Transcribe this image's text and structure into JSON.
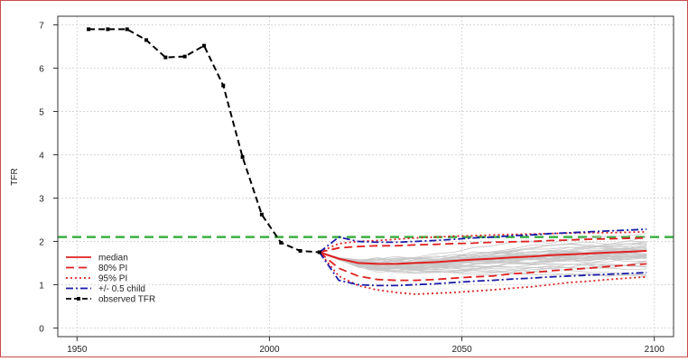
{
  "chart_data": {
    "type": "line",
    "title": "",
    "xlabel": "",
    "ylabel": "TFR",
    "xlim": [
      1945,
      2105
    ],
    "ylim": [
      -0.2,
      7.2
    ],
    "x_ticks": [
      "1950",
      "2000",
      "2050",
      "2100"
    ],
    "x_tick_values": [
      1950,
      2000,
      2050,
      2100
    ],
    "y_ticks": [
      "0",
      "1",
      "2",
      "3",
      "4",
      "5",
      "6",
      "7"
    ],
    "y_tick_values": [
      0,
      1,
      2,
      3,
      4,
      5,
      6,
      7
    ],
    "grid": true,
    "legend_position": "bottom-left",
    "reference_line": {
      "y": 2.1,
      "color": "#3cb043"
    },
    "observed": {
      "name": "observed TFR",
      "color": "#000000",
      "x": [
        1953,
        1958,
        1963,
        1968,
        1973,
        1978,
        1983,
        1988,
        1993,
        1998,
        2003,
        2008,
        2013
      ],
      "y": [
        6.9,
        6.9,
        6.9,
        6.65,
        6.25,
        6.27,
        6.52,
        5.6,
        3.95,
        2.62,
        1.97,
        1.78,
        1.75
      ]
    },
    "projection_x": [
      2013,
      2018,
      2023,
      2028,
      2033,
      2038,
      2043,
      2048,
      2053,
      2058,
      2063,
      2068,
      2073,
      2078,
      2083,
      2088,
      2093,
      2098
    ],
    "series": [
      {
        "name": "median",
        "color": "#e02020",
        "dash": "solid",
        "values": [
          1.75,
          1.6,
          1.5,
          1.48,
          1.48,
          1.5,
          1.52,
          1.55,
          1.58,
          1.6,
          1.63,
          1.65,
          1.68,
          1.7,
          1.72,
          1.74,
          1.76,
          1.78
        ]
      },
      {
        "name": "80% PI",
        "color": "#e02020",
        "dash": "dashed",
        "values": [
          1.75,
          1.85,
          1.88,
          1.9,
          1.9,
          1.92,
          1.93,
          1.95,
          1.96,
          1.98,
          1.99,
          2.0,
          2.02,
          2.03,
          2.05,
          2.06,
          2.07,
          2.08
        ]
      },
      {
        "name": "80% PI lower",
        "color": "#e02020",
        "dash": "dashed",
        "values": [
          1.75,
          1.38,
          1.2,
          1.12,
          1.1,
          1.1,
          1.12,
          1.15,
          1.18,
          1.2,
          1.25,
          1.28,
          1.32,
          1.35,
          1.38,
          1.42,
          1.45,
          1.48
        ]
      },
      {
        "name": "95% PI",
        "color": "#e02020",
        "dash": "dotted",
        "values": [
          1.75,
          1.95,
          2.0,
          2.02,
          2.05,
          2.08,
          2.1,
          2.12,
          2.13,
          2.15,
          2.16,
          2.17,
          2.18,
          2.19,
          2.2,
          2.2,
          2.21,
          2.22
        ]
      },
      {
        "name": "95% PI lower",
        "color": "#e02020",
        "dash": "dotted",
        "values": [
          1.75,
          1.2,
          0.98,
          0.88,
          0.82,
          0.78,
          0.8,
          0.82,
          0.85,
          0.88,
          0.92,
          0.95,
          1.0,
          1.05,
          1.08,
          1.12,
          1.15,
          1.18
        ]
      },
      {
        "name": "+/- 0.5 child",
        "color": "#1a1aa8",
        "dash": "dashdot",
        "values": [
          1.75,
          2.1,
          2.0,
          1.98,
          1.98,
          2.0,
          2.02,
          2.05,
          2.08,
          2.1,
          2.13,
          2.15,
          2.18,
          2.2,
          2.22,
          2.24,
          2.26,
          2.28
        ]
      },
      {
        "name": "+/- 0.5 child lower",
        "color": "#1a1aa8",
        "dash": "dashdot",
        "values": [
          1.75,
          1.1,
          1.0,
          0.98,
          0.98,
          1.0,
          1.02,
          1.05,
          1.08,
          1.1,
          1.13,
          1.15,
          1.18,
          1.2,
          1.22,
          1.24,
          1.26,
          1.28
        ]
      }
    ],
    "legend": [
      {
        "label": "median",
        "color": "#e02020",
        "dash": "solid"
      },
      {
        "label": "80% PI",
        "color": "#e02020",
        "dash": "dashed"
      },
      {
        "label": "95% PI",
        "color": "#e02020",
        "dash": "dotted"
      },
      {
        "label": "+/- 0.5 child",
        "color": "#1a1aa8",
        "dash": "dashdot"
      },
      {
        "label": "observed TFR",
        "color": "#000000",
        "dash": "observed"
      }
    ],
    "trajectory_color": "#c8c8c8"
  }
}
